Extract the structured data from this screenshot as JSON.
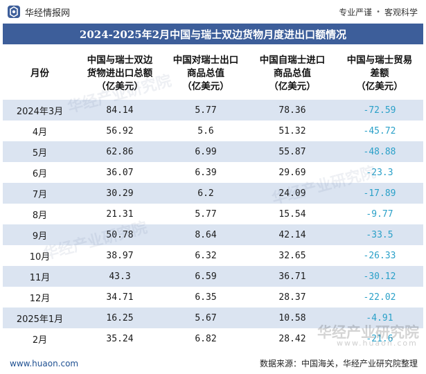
{
  "brand": {
    "name": "华经情报网",
    "slogan_left": "专业严谨",
    "slogan_sep": "•",
    "slogan_right": "客观科学"
  },
  "title": "2024-2025年2月中国与瑞士双边货物月度进出口额情况",
  "table": {
    "headers": [
      "月份",
      "中国与瑞士双边\n货物进出口总额\n（亿美元）",
      "中国对瑞士出口\n商品总值\n（亿美元）",
      "中国自瑞士进口\n商品总值\n（亿美元）",
      "中国与瑞士贸易\n差额\n（亿美元）"
    ],
    "rows": [
      {
        "month": "2024年3月",
        "total": "84.14",
        "export": "5.77",
        "import": "78.36",
        "balance": "-72.59"
      },
      {
        "month": "4月",
        "total": "56.92",
        "export": "5.6",
        "import": "51.32",
        "balance": "-45.72"
      },
      {
        "month": "5月",
        "total": "62.86",
        "export": "6.99",
        "import": "55.87",
        "balance": "-48.88"
      },
      {
        "month": "6月",
        "total": "36.07",
        "export": "6.39",
        "import": "29.69",
        "balance": "-23.3"
      },
      {
        "month": "7月",
        "total": "30.29",
        "export": "6.2",
        "import": "24.09",
        "balance": "-17.89"
      },
      {
        "month": "8月",
        "total": "21.31",
        "export": "5.77",
        "import": "15.54",
        "balance": "-9.77"
      },
      {
        "month": "9月",
        "total": "50.78",
        "export": "8.64",
        "import": "42.14",
        "balance": "-33.5"
      },
      {
        "month": "10月",
        "total": "38.97",
        "export": "6.32",
        "import": "32.65",
        "balance": "-26.33"
      },
      {
        "month": "11月",
        "total": "43.3",
        "export": "6.59",
        "import": "36.71",
        "balance": "-30.12"
      },
      {
        "month": "12月",
        "total": "34.71",
        "export": "6.35",
        "import": "28.37",
        "balance": "-22.02"
      },
      {
        "month": "2025年1月",
        "total": "16.25",
        "export": "5.67",
        "import": "10.58",
        "balance": "-4.91"
      },
      {
        "month": "2月",
        "total": "35.24",
        "export": "6.82",
        "import": "28.42",
        "balance": "-21.6"
      }
    ]
  },
  "footer": {
    "site": "www.huaon.com",
    "source": "数据来源：中国海关，华经产业研究院整理"
  },
  "watermark": {
    "text": "华经产业研究院",
    "url": "www.huaon.com"
  },
  "colors": {
    "title_bg": "#3d5e9a",
    "stripe": "#dbe4f1",
    "negative": "#2aa0c8"
  }
}
